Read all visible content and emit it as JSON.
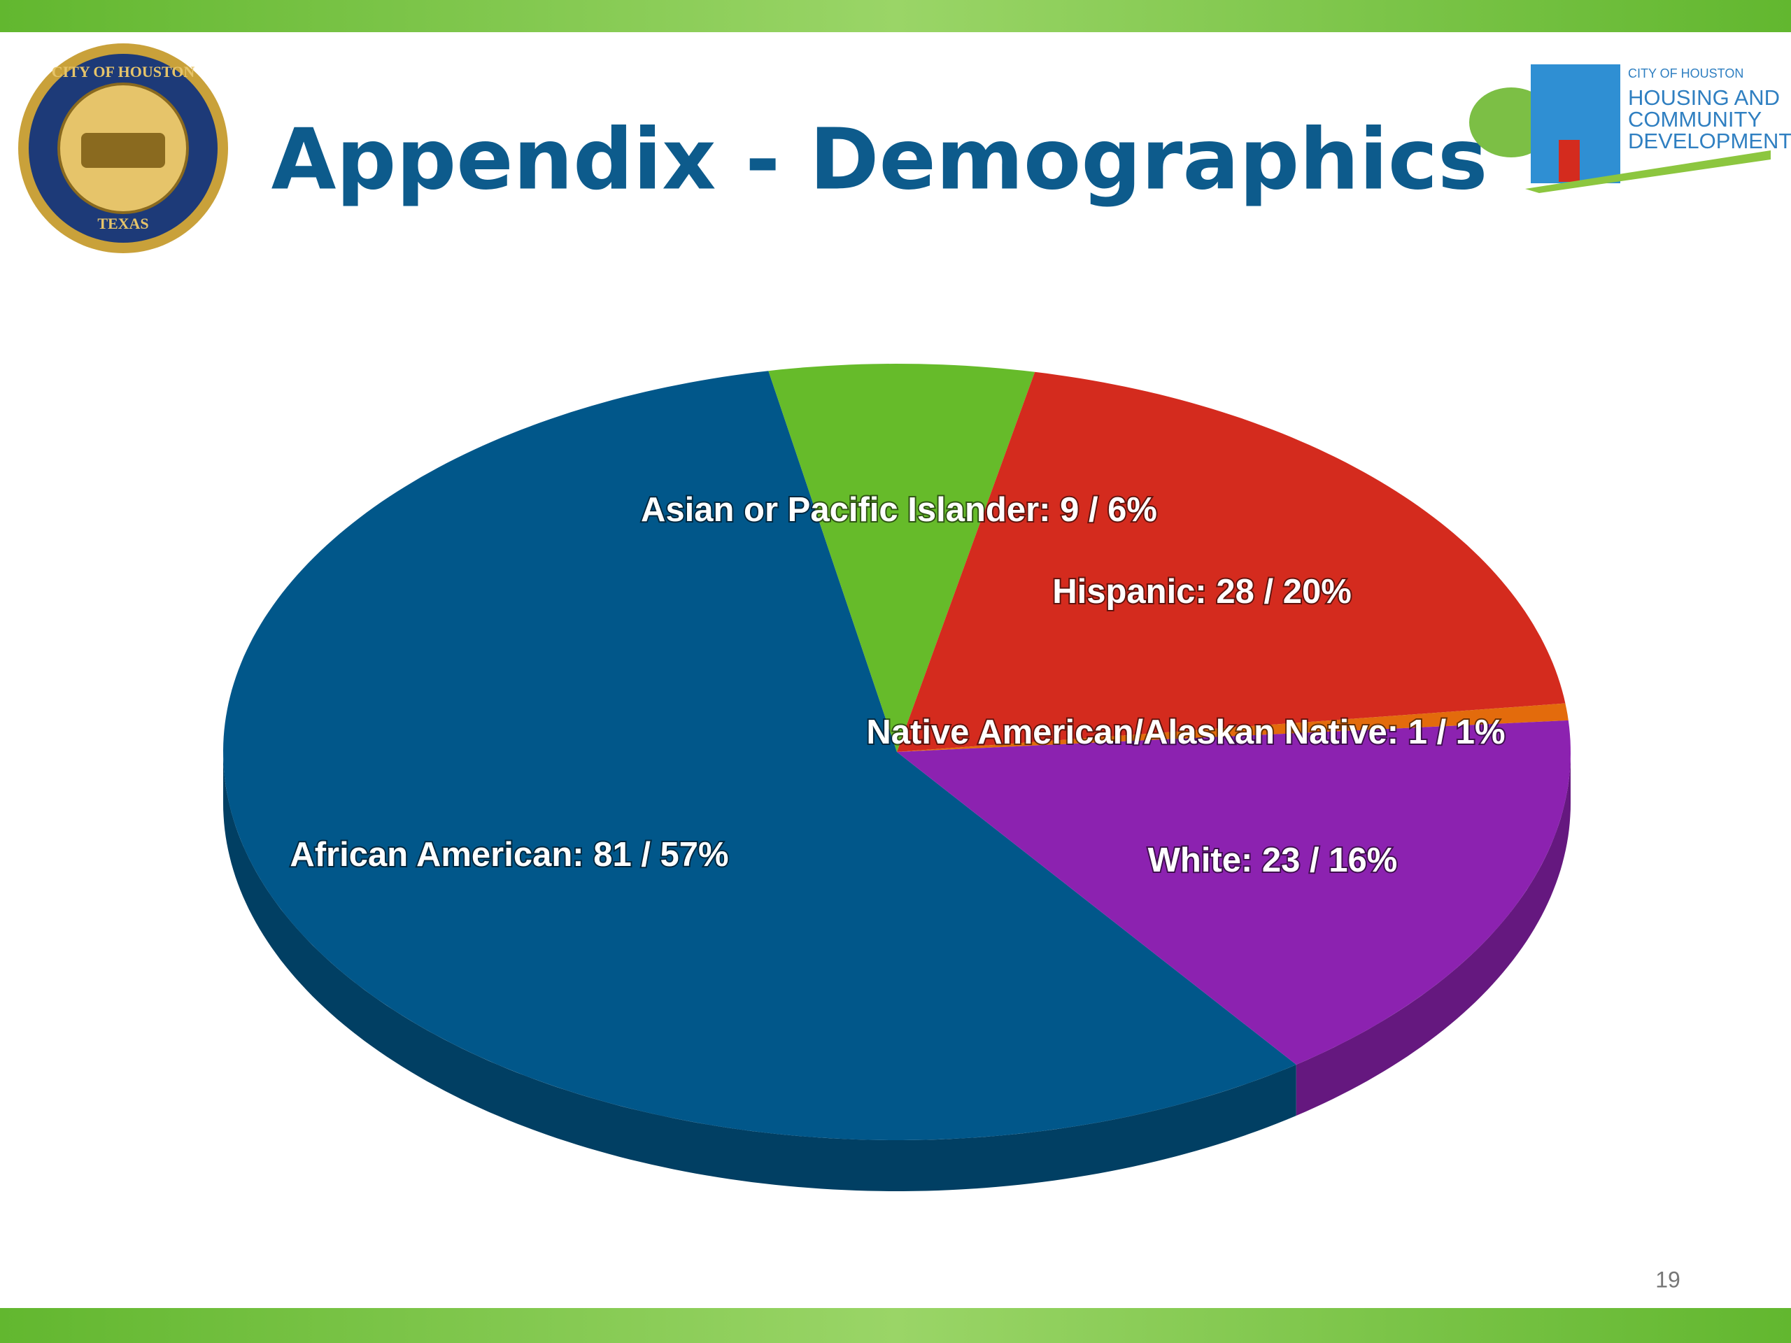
{
  "header": {
    "title": "Appendix - Demographics",
    "seal": {
      "top_text": "CITY OF HOUSTON",
      "bottom_text": "TEXAS"
    },
    "logo": {
      "lines": [
        "CITY OF HOUSTON",
        "HOUSING AND",
        "COMMUNITY",
        "DEVELOPMENT"
      ]
    }
  },
  "chart_data": {
    "type": "pie",
    "values": [
      81,
      9,
      28,
      1,
      23
    ],
    "value_labels": [
      "African American: 81 / 57%",
      "Asian or Pacific Islander: 9 / 6%",
      "Hispanic: 28 / 20%",
      "Native American/Alaskan Native: 1 / 1%",
      "White: 23 / 16%"
    ],
    "colors": [
      "#01578a",
      "#66bb2a",
      "#d42b1e",
      "#e36b0c",
      "#8c22b0"
    ]
  },
  "footer": {
    "page_number": "19"
  }
}
